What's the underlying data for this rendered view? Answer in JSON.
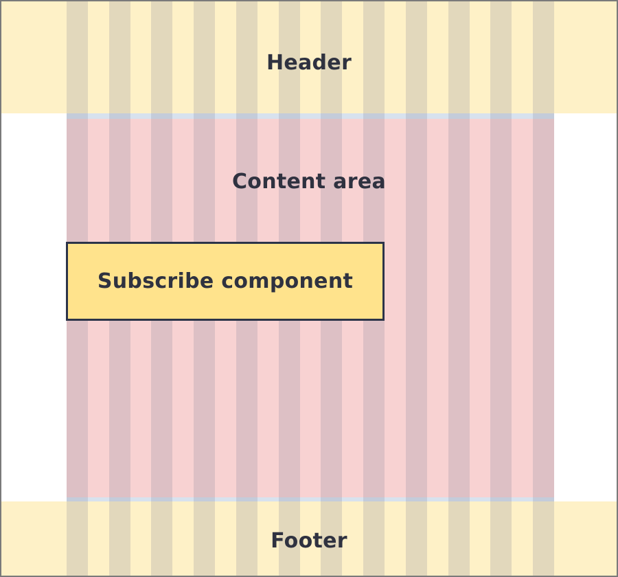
{
  "diagram": {
    "header": {
      "label": "Header"
    },
    "content": {
      "label": "Content area"
    },
    "subscribe": {
      "label": "Subscribe component"
    },
    "footer": {
      "label": "Footer"
    },
    "grid": {
      "columns": 12
    },
    "colors": {
      "band": "#fef1c7",
      "content": "#f8d2d2",
      "gutter_edge": "#d8e2ee",
      "column": "#8080962e",
      "subscribe_fill": "#ffe38c",
      "subscribe_border": "#2c3449",
      "text": "#2f3240"
    }
  }
}
